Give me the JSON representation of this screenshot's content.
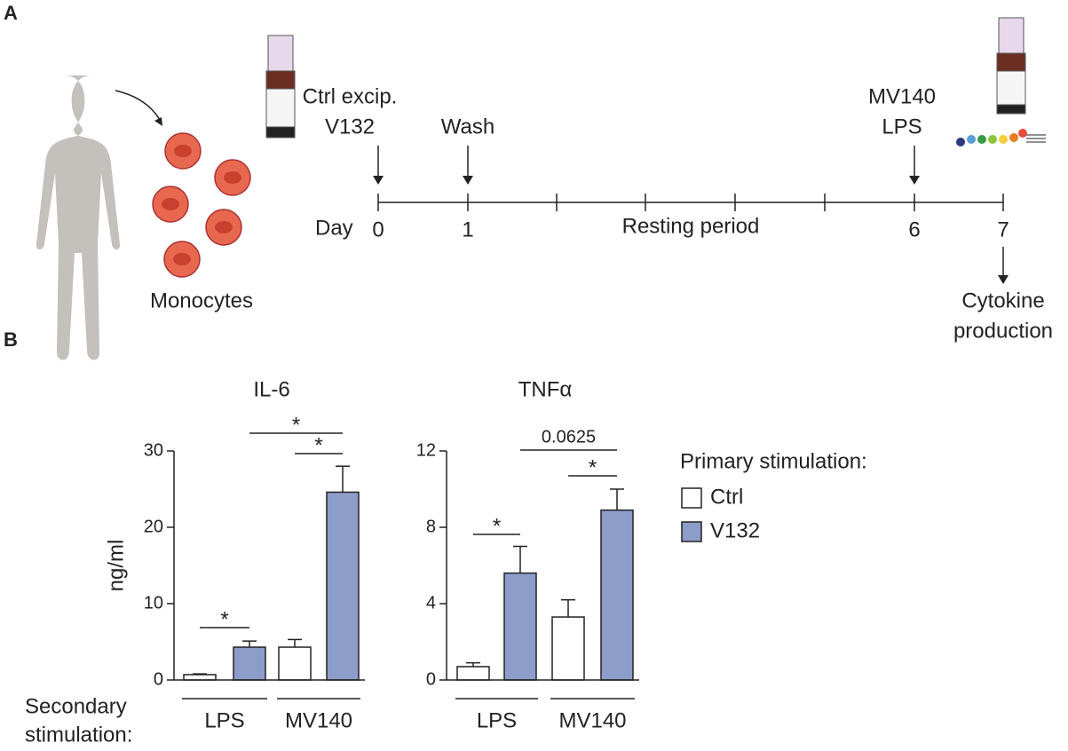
{
  "panel_labels": [
    "A",
    "B"
  ],
  "panel_a": {
    "cell_label": "Monocytes",
    "treatment": [
      "Ctrl excip.",
      "V132"
    ],
    "wash": "Wash",
    "restimulation": [
      "MV140",
      "LPS"
    ],
    "day_label": "Day",
    "days": [
      0,
      1,
      6,
      7
    ],
    "resting": "Resting period",
    "readout": [
      "Cytokine",
      "production"
    ]
  },
  "chart_data": [
    {
      "type": "bar",
      "title": "IL-6",
      "ylabel": "ng/ml",
      "xlabel": [
        "Secondary",
        "stimulation:"
      ],
      "legend_title": "Primary stimulation:",
      "categories": [
        "LPS",
        "MV140"
      ],
      "series": [
        {
          "name": "Ctrl",
          "color": "#ffffff",
          "values": [
            0.7,
            4.3
          ],
          "errors": [
            0.1,
            1.0
          ]
        },
        {
          "name": "V132",
          "color": "#8d9dc9",
          "values": [
            4.3,
            24.6
          ],
          "errors": [
            0.8,
            3.4
          ]
        }
      ],
      "ylim": [
        0,
        30
      ],
      "yticks": [
        0,
        10,
        20,
        30
      ],
      "annotations": [
        "*",
        "*",
        "*"
      ]
    },
    {
      "type": "bar",
      "title": "TNFα",
      "categories": [
        "LPS",
        "MV140"
      ],
      "series": [
        {
          "name": "Ctrl",
          "color": "#ffffff",
          "values": [
            0.7,
            3.3
          ],
          "errors": [
            0.2,
            0.9
          ]
        },
        {
          "name": "V132",
          "color": "#8d9dc9",
          "values": [
            5.6,
            8.9
          ],
          "errors": [
            1.4,
            1.1
          ]
        }
      ],
      "ylim": [
        0,
        12
      ],
      "yticks": [
        0,
        4,
        8,
        12
      ],
      "annotations": [
        "*",
        "0.0625",
        "*"
      ]
    }
  ]
}
